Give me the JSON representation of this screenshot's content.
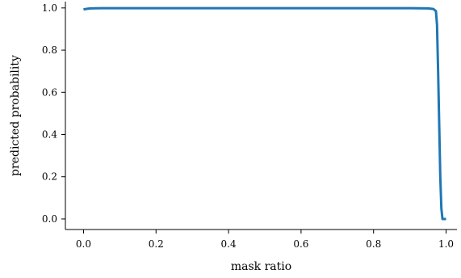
{
  "chart_data": {
    "type": "line",
    "title": "",
    "xlabel": "mask ratio",
    "ylabel": "predicted probability",
    "xlim": [
      -0.05,
      1.03
    ],
    "ylim": [
      -0.05,
      1.03
    ],
    "xticks": [
      0.0,
      0.2,
      0.4,
      0.6,
      0.8,
      1.0
    ],
    "xtick_labels": [
      "0.0",
      "0.2",
      "0.4",
      "0.6",
      "0.8",
      "1.0"
    ],
    "yticks": [
      0.0,
      0.2,
      0.4,
      0.6,
      0.8,
      1.0
    ],
    "ytick_labels": [
      "0.0",
      "0.2",
      "0.4",
      "0.6",
      "0.8",
      "1.0"
    ],
    "grid": false,
    "legend": false,
    "series": [
      {
        "color": "#1f77b4",
        "x": [
          0.0,
          0.01,
          0.02,
          0.05,
          0.1,
          0.2,
          0.3,
          0.4,
          0.5,
          0.6,
          0.7,
          0.8,
          0.9,
          0.95,
          0.965,
          0.972,
          0.975,
          0.978,
          0.981,
          0.984,
          0.987,
          0.99,
          1.0
        ],
        "y": [
          0.993,
          0.996,
          0.998,
          0.999,
          0.999,
          0.999,
          0.999,
          0.999,
          0.999,
          0.999,
          0.999,
          0.999,
          0.999,
          0.998,
          0.995,
          0.985,
          0.92,
          0.7,
          0.45,
          0.2,
          0.05,
          0.0,
          0.0
        ]
      }
    ]
  }
}
